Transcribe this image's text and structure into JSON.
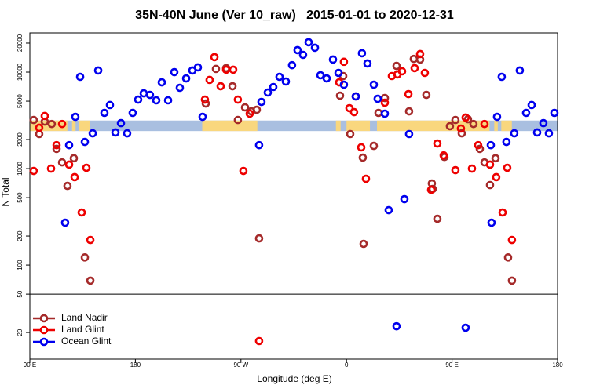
{
  "chart_data": {
    "type": "scatter",
    "title": "35N-40N June (Ver 10_raw)   2015-01-01 to 2020-12-31",
    "xlabel": "Longitude (deg E)",
    "ylabel": "N Total",
    "xlim": [
      90,
      540
    ],
    "xticks": [
      {
        "value": 90,
        "label": "90 E"
      },
      180,
      {
        "value": 270,
        "label": "90 W"
      },
      {
        "value": 360,
        "label": "0"
      },
      {
        "value": 450,
        "label": "90 E"
      },
      {
        "value": 540,
        "label": "180"
      }
    ],
    "ylim": [
      10.6,
      25500
    ],
    "ylog": true,
    "yticks": [
      20,
      50,
      100,
      200,
      500,
      1000,
      2000,
      5000,
      10000,
      20000
    ],
    "panel_split": 50,
    "legend": "bottomleft",
    "band": {
      "ylim": [
        2450,
        3150
      ],
      "ocean_color": "#a9bfe0",
      "land_color": "#f9d77e",
      "land": [
        [
          90,
          122
        ],
        [
          126,
          129
        ],
        [
          132,
          141
        ],
        [
          237,
          284
        ],
        [
          351,
          355
        ],
        [
          360,
          380
        ],
        [
          386,
          482
        ],
        [
          486,
          489
        ],
        [
          492,
          501
        ]
      ]
    },
    "series": [
      {
        "name": "Land Nadir",
        "color": "#a52a2a",
        "x": [
          93.3,
          98.0,
          102.7,
          108.7,
          112.8,
          117.5,
          122.1,
          127.5,
          136.9,
          141.6,
          285.5,
          240.0,
          248.7,
          257.4,
          262.8,
          267.4,
          273.5,
          278.8,
          283.5,
          354.5,
          357.2,
          363.2,
          367.9,
          373.9,
          374.6,
          383.3,
          387.3,
          392.7,
          402.7,
          413.4,
          417.4,
          422.8,
          428.1,
          432.8,
          433.5,
          437.5,
          443.5,
          448.2,
          452.9,
          458.3,
          463.6,
          468.3,
          473.7,
          477.7,
          482.4,
          487.1,
          497.8,
          501.1
        ],
        "values": [
          3190,
          2280,
          3070,
          2900,
          1600,
          1160,
          662,
          1280,
          120,
          69,
          189,
          4730,
          10800,
          11000,
          7140,
          3190,
          4310,
          3920,
          4070,
          5700,
          9110,
          2280,
          5600,
          1300,
          166,
          1720,
          3780,
          5390,
          11600,
          3920,
          13700,
          13500,
          5810,
          701,
          615,
          302,
          1320,
          2750,
          3190,
          2320,
          3250,
          2900,
          1600,
          1160,
          675,
          1280,
          120,
          69
        ]
      },
      {
        "name": "Land Glint",
        "color": "#ee0000",
        "x": [
          93.3,
          98.0,
          102.7,
          108.1,
          112.8,
          117.5,
          123.5,
          128.2,
          134.2,
          138.2,
          141.6,
          239.3,
          243.3,
          247.4,
          252.7,
          257.4,
          263.4,
          267.4,
          272.1,
          277.5,
          353.8,
          357.8,
          362.5,
          366.5,
          372.6,
          376.6,
          392.7,
          398.7,
          403.4,
          407.4,
          412.8,
          418.1,
          422.8,
          426.8,
          432.2,
          437.5,
          442.9,
          452.9,
          457.6,
          461.6,
          467.0,
          472.3,
          477.7,
          482.4,
          487.7,
          493.1,
          497.1,
          501.1,
          285.5
        ],
        "values": [
          946,
          2650,
          3510,
          1000,
          1750,
          2900,
          1100,
          815,
          351,
          1020,
          182,
          5190,
          8300,
          14300,
          7140,
          10600,
          10600,
          5190,
          946,
          3710,
          7840,
          12800,
          4230,
          3850,
          1660,
          784,
          4820,
          9110,
          9460,
          10200,
          5920,
          11000,
          15400,
          9820,
          603,
          1820,
          1370,
          963,
          2600,
          3380,
          1000,
          1750,
          2900,
          1100,
          815,
          351,
          1020,
          182,
          16.3
        ]
      },
      {
        "name": "Ocean Glint",
        "color": "#0000ee",
        "x": [
          120.1,
          123.5,
          128.8,
          132.9,
          136.9,
          143.6,
          148.3,
          153.6,
          158.3,
          163.0,
          167.7,
          173.0,
          177.7,
          182.4,
          187.1,
          192.4,
          197.8,
          202.5,
          207.9,
          213.2,
          217.9,
          223.3,
          228.6,
          233.3,
          237.3,
          285.5,
          287.5,
          292.9,
          297.6,
          302.9,
          308.3,
          313.6,
          318.3,
          323.0,
          327.7,
          333.1,
          337.8,
          343.1,
          348.5,
          353.2,
          357.8,
          367.9,
          373.2,
          377.9,
          383.3,
          386.6,
          392.7,
          396.0,
          409.4,
          413.4,
          483.7,
          483.1,
          488.4,
          492.4,
          496.4,
          503.1,
          507.8,
          513.2,
          517.9,
          522.6,
          527.9,
          532.6,
          537.3,
          402.7,
          461.6
        ],
        "values": [
          275,
          1750,
          3440,
          8940,
          1890,
          2320,
          10400,
          3780,
          4560,
          2370,
          2960,
          2320,
          3780,
          5190,
          6030,
          5810,
          5100,
          7840,
          5100,
          10000,
          6880,
          8610,
          10400,
          11200,
          3440,
          1750,
          4910,
          6150,
          7010,
          8940,
          7990,
          11800,
          16900,
          15100,
          20400,
          17900,
          9280,
          8610,
          13500,
          9820,
          7410,
          5600,
          15700,
          12300,
          7410,
          5290,
          3710,
          371,
          482,
          2280,
          275,
          1750,
          3440,
          8940,
          1890,
          2320,
          10400,
          3780,
          4560,
          2370,
          2960,
          2320,
          3780,
          23.2,
          22.4
        ]
      }
    ]
  }
}
